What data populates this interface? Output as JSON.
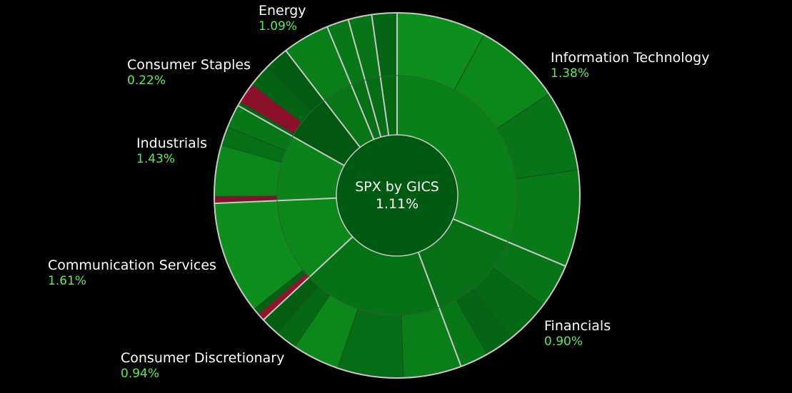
{
  "chart_data": {
    "type": "sunburst",
    "center": {
      "title": "SPX by GICS",
      "value": "1.11%"
    },
    "sectors": [
      {
        "name": "Information Technology",
        "pct": "1.38%",
        "change": 1.38,
        "start": 0,
        "end": 112.8,
        "industries": [
          {
            "end": 56.2,
            "change": 1.5,
            "leaves": [
              {
                "end": 28.4,
                "change": 1.8
              },
              {
                "end": 56.2,
                "change": 1.6
              }
            ]
          },
          {
            "end": 112.8,
            "change": 1.1,
            "leaves": [
              {
                "end": 82.0,
                "change": 1.0
              },
              {
                "end": 112.8,
                "change": 1.2
              }
            ]
          }
        ]
      },
      {
        "name": "Financials",
        "pct": "0.90%",
        "change": 0.9,
        "start": 112.8,
        "end": 159.5,
        "industries": [
          {
            "end": 159.5,
            "change": 0.9,
            "leaves": [
              {
                "end": 127.0,
                "change": 1.0
              },
              {
                "end": 141.5,
                "change": 0.7
              },
              {
                "end": 150.5,
                "change": 0.6
              },
              {
                "end": 159.5,
                "change": 1.1
              }
            ]
          }
        ]
      },
      {
        "name": "Consumer Discretionary",
        "pct": "0.94%",
        "change": 0.94,
        "start": 159.5,
        "end": 227,
        "industries": [
          {
            "end": 178.0,
            "change": 1.3,
            "leaves": [
              {
                "end": 178.0,
                "change": 1.3
              }
            ]
          },
          {
            "end": 199.0,
            "change": 0.8,
            "leaves": [
              {
                "end": 199.0,
                "change": 0.8
              }
            ]
          },
          {
            "end": 227.0,
            "change": 1.0,
            "leaves": [
              {
                "end": 214.0,
                "change": 1.6
              },
              {
                "end": 221.0,
                "change": 0.7
              },
              {
                "end": 227.0,
                "change": 0.4
              }
            ]
          }
        ]
      },
      {
        "name": "Communication Services",
        "pct": "1.61%",
        "change": 1.61,
        "start": 227,
        "end": 267.5,
        "industries": [
          {
            "end": 231.5,
            "change": 0.9,
            "leaves": [
              {
                "end": 229.3,
                "change": -1.6
              },
              {
                "end": 231.5,
                "change": 0.5
              }
            ]
          },
          {
            "end": 267.5,
            "change": 1.8,
            "leaves": [
              {
                "end": 267.5,
                "change": 1.8
              }
            ]
          }
        ]
      },
      {
        "name": "Industrials",
        "pct": "1.43%",
        "change": 1.43,
        "start": 267.5,
        "end": 299.5,
        "industries": [
          {
            "end": 299.5,
            "change": 1.4,
            "leaves": [
              {
                "end": 269.7,
                "change": -1.2
              },
              {
                "end": 286.0,
                "change": 1.6
              },
              {
                "end": 292.0,
                "change": 0.9
              },
              {
                "end": 299.5,
                "change": 1.1
              }
            ]
          }
        ]
      },
      {
        "name": "Consumer Staples",
        "pct": "0.22%",
        "change": 0.22,
        "start": 299.5,
        "end": 322.5,
        "industries": [
          {
            "end": 322.5,
            "change": 0.3,
            "leaves": [
              {
                "end": 300.8,
                "change": 0.6
              },
              {
                "end": 307.5,
                "change": -1.3
              },
              {
                "end": 314.5,
                "change": 0.5
              },
              {
                "end": 322.5,
                "change": 0.3
              }
            ]
          }
        ]
      },
      {
        "name": "Energy",
        "pct": "1.09%",
        "change": 1.09,
        "start": 322.5,
        "end": 337.5,
        "industries": [
          {
            "end": 337.5,
            "change": 1.1,
            "leaves": [
              {
                "end": 337.5,
                "change": 1.3
              }
            ]
          }
        ]
      },
      {
        "name": "",
        "pct": "",
        "change": 0.9,
        "start": 337.5,
        "end": 344.5,
        "industries": [
          {
            "end": 344.5,
            "change": 0.9,
            "leaves": [
              {
                "end": 344.5,
                "change": 1.1
              }
            ]
          }
        ]
      },
      {
        "name": "",
        "pct": "",
        "change": 0.8,
        "start": 344.5,
        "end": 352.0,
        "industries": [
          {
            "end": 352.0,
            "change": 0.8,
            "leaves": [
              {
                "end": 352.0,
                "change": 1.0
              }
            ]
          }
        ]
      },
      {
        "name": "",
        "pct": "",
        "change": 0.7,
        "start": 352.0,
        "end": 360.0,
        "industries": [
          {
            "end": 360.0,
            "change": 0.7,
            "leaves": [
              {
                "end": 360.0,
                "change": 0.6
              }
            ]
          }
        ]
      }
    ],
    "colors": {
      "positive_dark": "#004d0f",
      "positive_bright": "#0a8c1a",
      "negative": "#8a0f22",
      "divider": "#c8c8c8"
    }
  }
}
